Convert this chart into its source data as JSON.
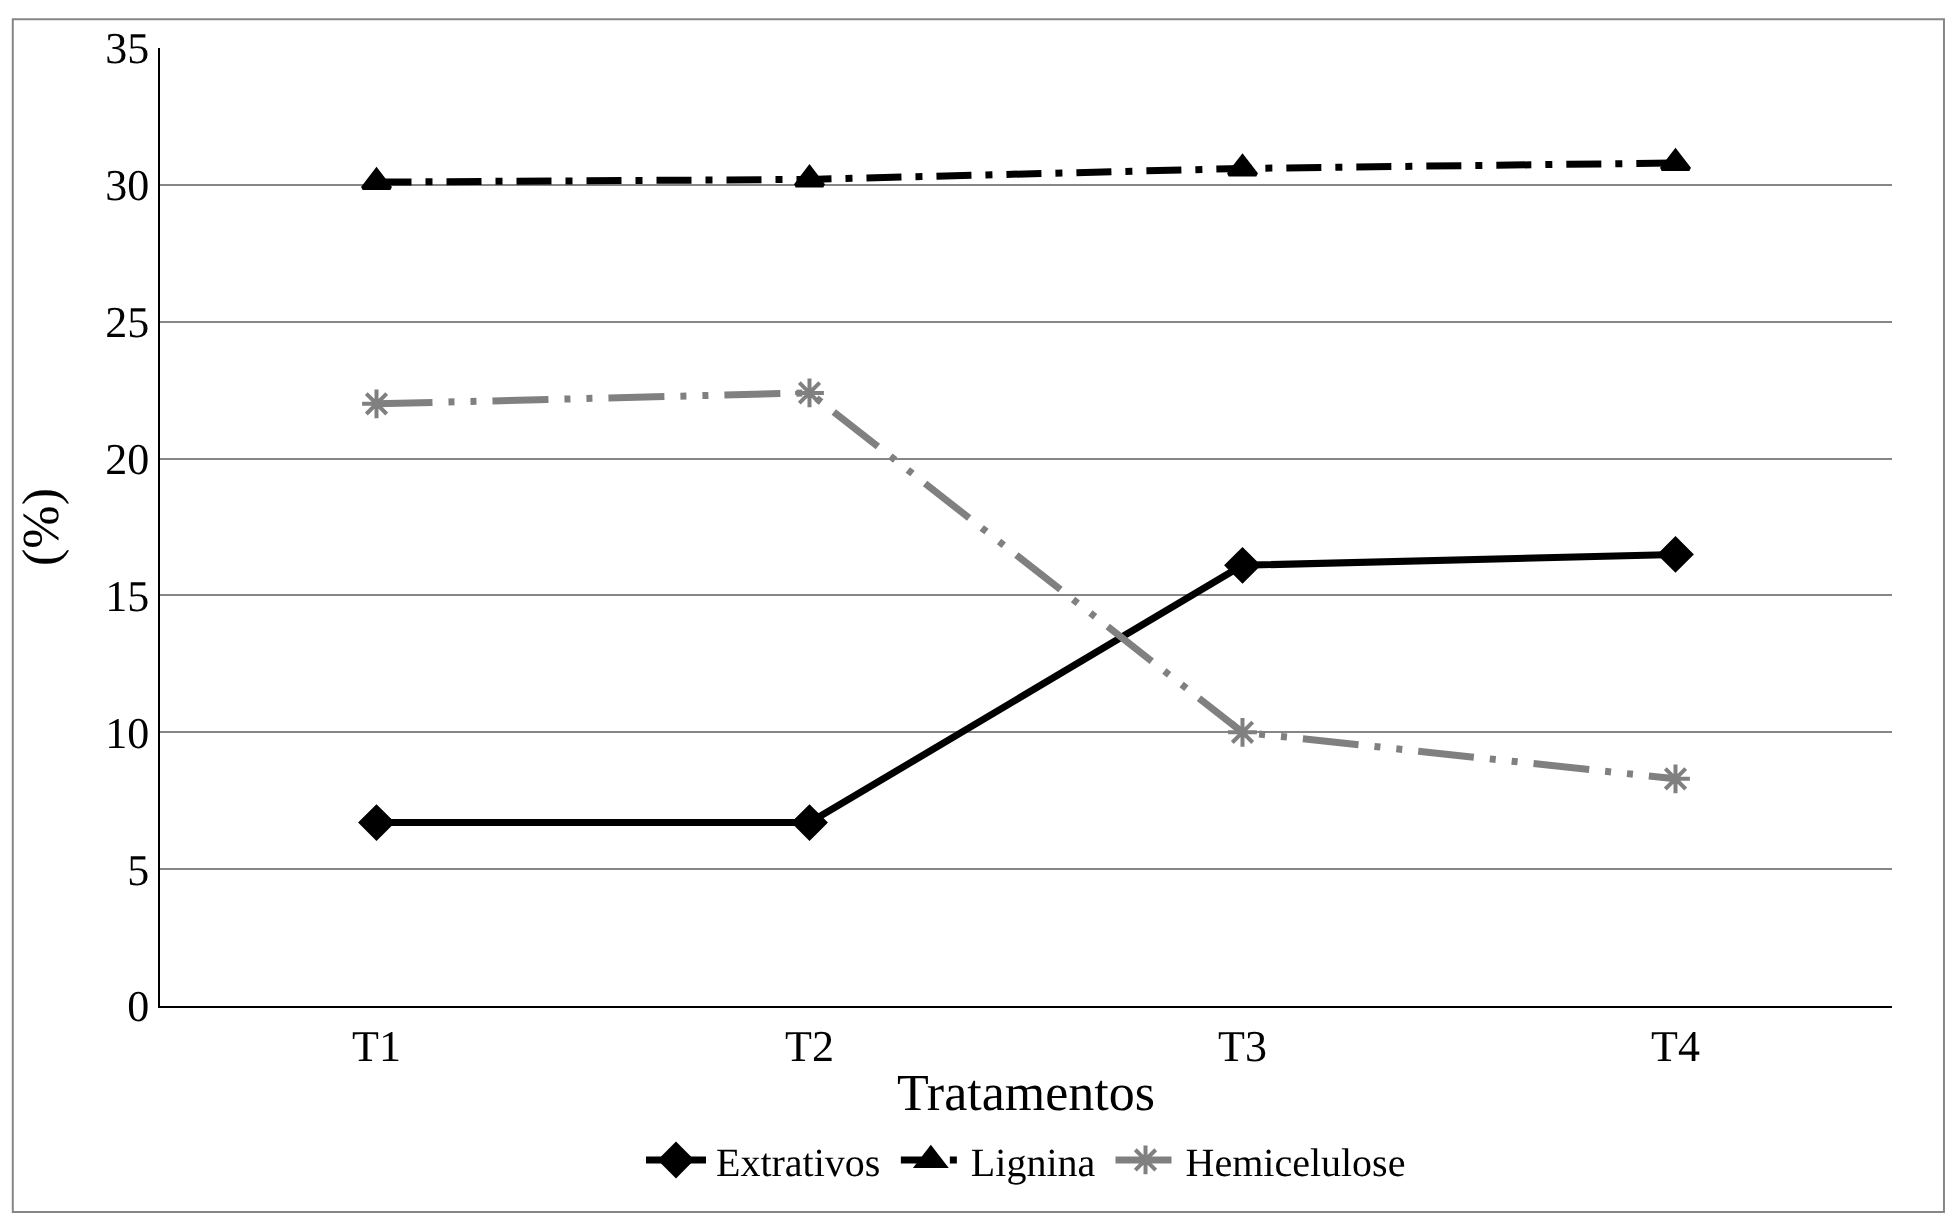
{
  "chart_data": {
    "type": "line",
    "xlabel": "Tratamentos",
    "ylabel": "(%)",
    "categories": [
      "T1",
      "T2",
      "T3",
      "T4"
    ],
    "series": [
      {
        "name": "Extrativos",
        "color": "#000000",
        "values": [
          6.7,
          6.7,
          16.1,
          16.5
        ],
        "marker": "diamond",
        "line_style": "solid"
      },
      {
        "name": "Lignina",
        "color": "#000000",
        "values": [
          30.1,
          30.2,
          30.6,
          30.8
        ],
        "marker": "triangle",
        "line_style": "dashed"
      },
      {
        "name": "Hemicelulose",
        "color": "#808080",
        "values": [
          22.0,
          22.4,
          10.0,
          8.3
        ],
        "marker": "cross",
        "line_style": "dotted"
      }
    ],
    "ylim": [
      0,
      35
    ],
    "yticks": [
      0,
      5,
      10,
      15,
      20,
      25,
      30,
      35
    ],
    "grid": "y",
    "legend": "bottom"
  }
}
